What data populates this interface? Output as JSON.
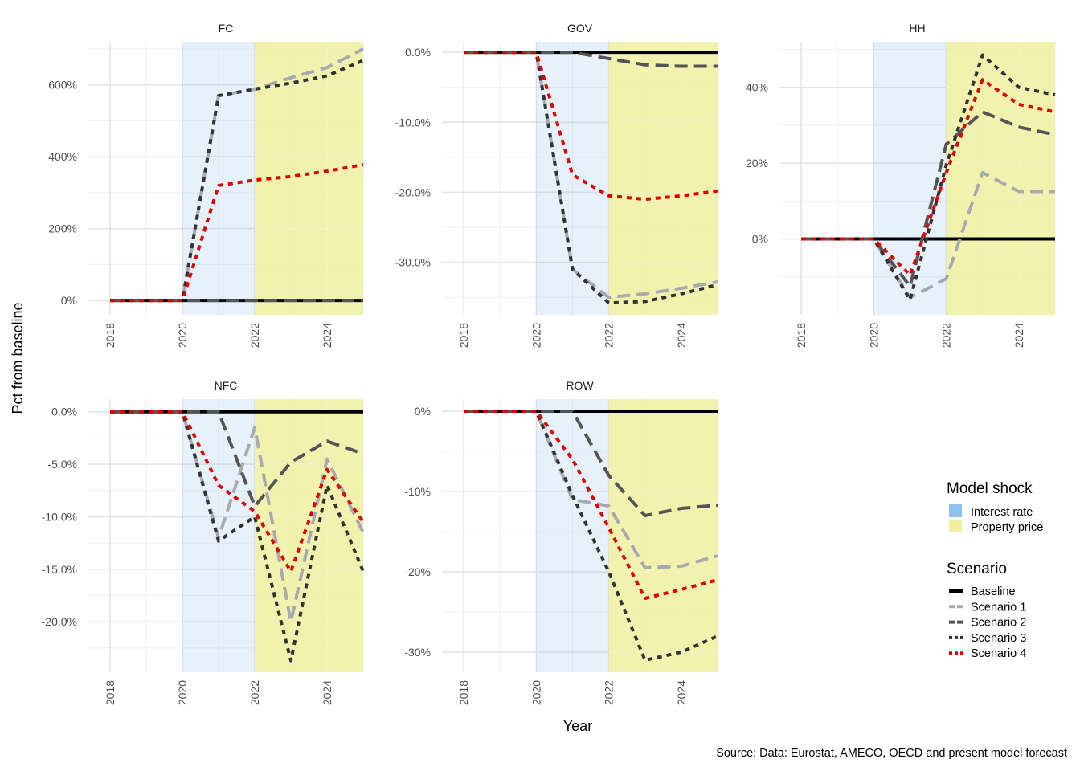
{
  "ylabel": "Pct from baseline",
  "xlabel": "Year",
  "caption": "Source: Data: Eurostat, AMECO, OECD and present model forecast",
  "legend": {
    "shock_title": "Model shock",
    "shock_items": [
      {
        "label": "Interest rate",
        "color": "#8ec1ee"
      },
      {
        "label": "Property price",
        "color": "#eef0a0"
      }
    ],
    "scenario_title": "Scenario",
    "scenario_items": [
      {
        "label": "Baseline",
        "color": "#000000",
        "dash": "solid"
      },
      {
        "label": "Scenario 1",
        "color": "#a9a9b0",
        "dash": "long"
      },
      {
        "label": "Scenario 2",
        "color": "#555555",
        "dash": "long"
      },
      {
        "label": "Scenario 3",
        "color": "#333333",
        "dash": "short"
      },
      {
        "label": "Scenario 4",
        "color": "#e00000",
        "dash": "short"
      }
    ]
  },
  "chart_data": [
    {
      "type": "line",
      "title": "FC",
      "x": [
        2018,
        2019,
        2020,
        2021,
        2022,
        2023,
        2024,
        2025
      ],
      "xticks": [
        "2018",
        "2020",
        "2022",
        "2024"
      ],
      "ylim": [
        -40,
        720
      ],
      "yticks": [
        0,
        200,
        400,
        600
      ],
      "yticklabels": [
        "0%",
        "200%",
        "400%",
        "600%"
      ],
      "shaded_regions": [
        {
          "shock": "Interest rate",
          "from": 2020,
          "to": 2022
        },
        {
          "shock": "Property price",
          "from": 2022,
          "to": 2025
        }
      ],
      "series": [
        {
          "name": "Baseline",
          "values": [
            0,
            0,
            0,
            0,
            0,
            0,
            0,
            0
          ]
        },
        {
          "name": "Scenario 1",
          "values": [
            0,
            0,
            0,
            570,
            588,
            620,
            648,
            700
          ]
        },
        {
          "name": "Scenario 2",
          "values": [
            0,
            0,
            0,
            0,
            0,
            0,
            0,
            0
          ]
        },
        {
          "name": "Scenario 3",
          "values": [
            0,
            0,
            0,
            570,
            588,
            605,
            625,
            668
          ]
        },
        {
          "name": "Scenario 4",
          "values": [
            0,
            0,
            0,
            320,
            335,
            345,
            360,
            378
          ]
        }
      ]
    },
    {
      "type": "line",
      "title": "GOV",
      "x": [
        2018,
        2019,
        2020,
        2021,
        2022,
        2023,
        2024,
        2025
      ],
      "xticks": [
        "2018",
        "2020",
        "2022",
        "2024"
      ],
      "ylim": [
        -37.5,
        1.5
      ],
      "yticks": [
        0,
        -10,
        -20,
        -30
      ],
      "yticklabels": [
        "0.0%",
        "-10.0%",
        "-20.0%",
        "-30.0%"
      ],
      "shaded_regions": [
        {
          "shock": "Interest rate",
          "from": 2020,
          "to": 2022
        },
        {
          "shock": "Property price",
          "from": 2022,
          "to": 2025
        }
      ],
      "series": [
        {
          "name": "Baseline",
          "values": [
            0,
            0,
            0,
            0,
            0,
            0,
            0,
            0
          ]
        },
        {
          "name": "Scenario 1",
          "values": [
            0,
            0,
            0,
            -31,
            -35,
            -34.5,
            -33.7,
            -32.8
          ]
        },
        {
          "name": "Scenario 2",
          "values": [
            0,
            0,
            0,
            0,
            -0.9,
            -1.8,
            -2,
            -2
          ]
        },
        {
          "name": "Scenario 3",
          "values": [
            0,
            0,
            0,
            -31,
            -35.8,
            -35.6,
            -34.5,
            -33.2
          ]
        },
        {
          "name": "Scenario 4",
          "values": [
            0,
            0,
            0,
            -17.5,
            -20.5,
            -21,
            -20.5,
            -19.8
          ]
        }
      ]
    },
    {
      "type": "line",
      "title": "HH",
      "x": [
        2018,
        2019,
        2020,
        2021,
        2022,
        2023,
        2024,
        2025
      ],
      "xticks": [
        "2018",
        "2020",
        "2022",
        "2024"
      ],
      "ylim": [
        -20,
        52
      ],
      "yticks": [
        0,
        20,
        40
      ],
      "yticklabels": [
        "0%",
        "20%",
        "40%"
      ],
      "shaded_regions": [
        {
          "shock": "Interest rate",
          "from": 2020,
          "to": 2022
        },
        {
          "shock": "Property price",
          "from": 2022,
          "to": 2025
        }
      ],
      "series": [
        {
          "name": "Baseline",
          "values": [
            0,
            0,
            0,
            0,
            0,
            0,
            0,
            0
          ]
        },
        {
          "name": "Scenario 1",
          "values": [
            0,
            0,
            0,
            -15.5,
            -10.5,
            17.5,
            12.5,
            12.5
          ]
        },
        {
          "name": "Scenario 2",
          "values": [
            0,
            0,
            0,
            -12.5,
            25,
            33.5,
            29.5,
            27.5
          ]
        },
        {
          "name": "Scenario 3",
          "values": [
            0,
            0,
            0,
            -16,
            19.5,
            48.5,
            40,
            38
          ]
        },
        {
          "name": "Scenario 4",
          "values": [
            0,
            0,
            0,
            -9.5,
            17.5,
            42,
            35.5,
            33.5
          ]
        }
      ]
    },
    {
      "type": "line",
      "title": "NFC",
      "x": [
        2018,
        2019,
        2020,
        2021,
        2022,
        2023,
        2024,
        2025
      ],
      "xticks": [
        "2018",
        "2020",
        "2022",
        "2024"
      ],
      "ylim": [
        -24.8,
        1.2
      ],
      "yticks": [
        0,
        -5,
        -10,
        -15,
        -20
      ],
      "yticklabels": [
        "0.0%",
        "-5.0%",
        "-10.0%",
        "-15.0%",
        "-20.0%"
      ],
      "shaded_regions": [
        {
          "shock": "Interest rate",
          "from": 2020,
          "to": 2022
        },
        {
          "shock": "Property price",
          "from": 2022,
          "to": 2025
        }
      ],
      "series": [
        {
          "name": "Baseline",
          "values": [
            0,
            0,
            0,
            0,
            0,
            0,
            0,
            0
          ]
        },
        {
          "name": "Scenario 1",
          "values": [
            0,
            0,
            0,
            -12,
            -1.5,
            -20,
            -4.5,
            -11.5
          ]
        },
        {
          "name": "Scenario 2",
          "values": [
            0,
            0,
            0,
            0,
            -9,
            -4.8,
            -2.8,
            -4
          ]
        },
        {
          "name": "Scenario 3",
          "values": [
            0,
            0,
            0,
            -12.3,
            -10,
            -23.7,
            -7,
            -15.2
          ]
        },
        {
          "name": "Scenario 4",
          "values": [
            0,
            0,
            0,
            -7,
            -9.5,
            -15.2,
            -5.5,
            -10.5
          ]
        }
      ]
    },
    {
      "type": "line",
      "title": "ROW",
      "x": [
        2018,
        2019,
        2020,
        2021,
        2022,
        2023,
        2024,
        2025
      ],
      "xticks": [
        "2018",
        "2020",
        "2022",
        "2024"
      ],
      "ylim": [
        -32.5,
        1.5
      ],
      "yticks": [
        0,
        -10,
        -20,
        -30
      ],
      "yticklabels": [
        "0%",
        "-10%",
        "-20%",
        "-30%"
      ],
      "shaded_regions": [
        {
          "shock": "Interest rate",
          "from": 2020,
          "to": 2022
        },
        {
          "shock": "Property price",
          "from": 2022,
          "to": 2025
        }
      ],
      "series": [
        {
          "name": "Baseline",
          "values": [
            0,
            0,
            0,
            0,
            0,
            0,
            0,
            0
          ]
        },
        {
          "name": "Scenario 1",
          "values": [
            0,
            0,
            0,
            -11,
            -11.8,
            -19.5,
            -19.3,
            -18
          ]
        },
        {
          "name": "Scenario 2",
          "values": [
            0,
            0,
            0,
            0,
            -8,
            -13,
            -12.1,
            -11.7
          ]
        },
        {
          "name": "Scenario 3",
          "values": [
            0,
            0,
            0,
            -10.5,
            -20,
            -31,
            -30,
            -28
          ]
        },
        {
          "name": "Scenario 4",
          "values": [
            0,
            0,
            0,
            -6,
            -14.5,
            -23.3,
            -22.2,
            -21
          ]
        }
      ]
    }
  ]
}
